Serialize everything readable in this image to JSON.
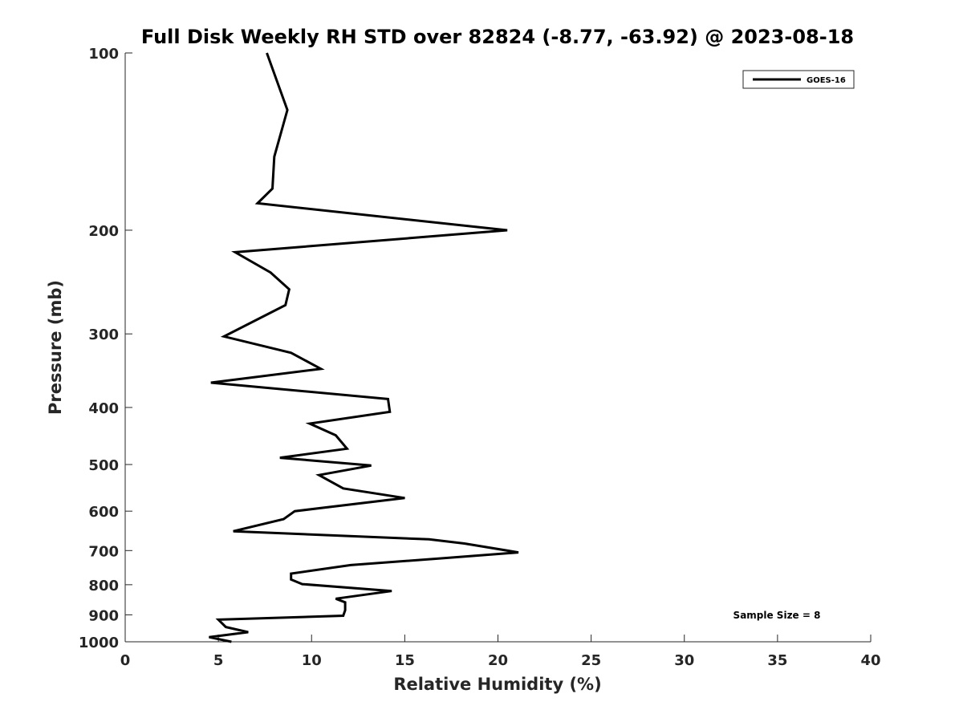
{
  "chart_data": {
    "type": "line",
    "title": "Full Disk Weekly RH STD over 82824 (-8.77, -63.92) @ 2023-08-18",
    "xlabel": "Relative Humidity (%)",
    "ylabel": "Pressure (mb)",
    "xlim": [
      0,
      40
    ],
    "ylim": [
      100,
      1000
    ],
    "y_scale": "log",
    "y_reversed": true,
    "grid": false,
    "legend_position": "top-right",
    "x_ticks": [
      0,
      5,
      10,
      15,
      20,
      25,
      30,
      35,
      40
    ],
    "y_ticks": [
      100,
      200,
      300,
      400,
      500,
      600,
      700,
      800,
      900,
      1000
    ],
    "annotation": "Sample Size = 8",
    "series": [
      {
        "name": "GOES-16",
        "color": "#000000",
        "points": [
          [
            7.6,
            100
          ],
          [
            8.7,
            125
          ],
          [
            8.0,
            150
          ],
          [
            7.9,
            170
          ],
          [
            7.1,
            180
          ],
          [
            20.5,
            200
          ],
          [
            5.9,
            218
          ],
          [
            7.8,
            236
          ],
          [
            8.8,
            252
          ],
          [
            8.6,
            268
          ],
          [
            5.3,
            303
          ],
          [
            8.9,
            323
          ],
          [
            10.5,
            344
          ],
          [
            4.6,
            363
          ],
          [
            14.1,
            387
          ],
          [
            14.2,
            407
          ],
          [
            9.9,
            426
          ],
          [
            11.3,
            446
          ],
          [
            11.9,
            470
          ],
          [
            8.3,
            487
          ],
          [
            13.2,
            502
          ],
          [
            10.4,
            521
          ],
          [
            11.7,
            549
          ],
          [
            15.0,
            570
          ],
          [
            9.1,
            600
          ],
          [
            8.5,
            619
          ],
          [
            5.8,
            649
          ],
          [
            16.3,
            670
          ],
          [
            18.2,
            681
          ],
          [
            21.1,
            705
          ],
          [
            17.1,
            721
          ],
          [
            12.1,
            741
          ],
          [
            8.9,
            766
          ],
          [
            8.9,
            784
          ],
          [
            9.5,
            798
          ],
          [
            14.3,
            820
          ],
          [
            11.3,
            845
          ],
          [
            11.8,
            857
          ],
          [
            11.8,
            884
          ],
          [
            11.7,
            903
          ],
          [
            5.0,
            917
          ],
          [
            5.4,
            944
          ],
          [
            6.6,
            963
          ],
          [
            4.5,
            982
          ],
          [
            5.7,
            1000
          ]
        ]
      }
    ]
  }
}
